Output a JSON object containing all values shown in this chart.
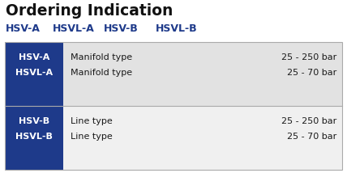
{
  "title": "Ordering Indication",
  "subtitle_items": [
    "HSV-A",
    "HSVL-A",
    "HSV-B",
    "HSVL-B"
  ],
  "subtitle_color": "#1e3a8a",
  "title_color": "#111111",
  "background_color": "#ffffff",
  "dark_blue": "#1e3a8a",
  "light_gray": "#e2e2e2",
  "white": "#ffffff",
  "row_border": "#aaaaaa",
  "outer_border": "#aaaaaa",
  "rows": [
    {
      "label1": "HSV-A",
      "label2": "HSVL-A",
      "description1": "Manifold type",
      "description2": "Manifold type",
      "pressure1": "25 - 250 bar",
      "pressure2": "25 - 70 bar",
      "bg": "#e2e2e2"
    },
    {
      "label1": "HSV-B",
      "label2": "HSVL-B",
      "description1": "Line type",
      "description2": "Line type",
      "pressure1": "25 - 250 bar",
      "pressure2": "25 - 70 bar",
      "bg": "#f0f0f0"
    }
  ],
  "fig_width": 4.28,
  "fig_height": 2.14,
  "dpi": 100
}
